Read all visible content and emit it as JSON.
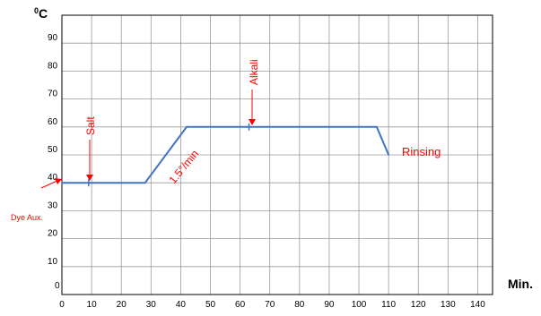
{
  "chart_data": {
    "type": "line",
    "title": "",
    "xlabel": "Min.",
    "ylabel": "0C",
    "ylabel_sup": "0",
    "ylabel_main": "C",
    "xlim": [
      0,
      145
    ],
    "ylim": [
      0,
      100
    ],
    "x_ticks": [
      0,
      10,
      20,
      30,
      40,
      50,
      60,
      70,
      80,
      90,
      100,
      110,
      120,
      130,
      140
    ],
    "y_ticks": [
      10,
      20,
      30,
      40,
      50,
      60,
      70,
      80,
      90
    ],
    "y_tick_zero_label": "0",
    "grid": true,
    "series": [
      {
        "color": "#4472c4",
        "x": [
          0,
          28,
          42,
          106,
          110
        ],
        "y": [
          40,
          40,
          60,
          60,
          50
        ]
      }
    ],
    "annotations": [
      {
        "text": "Dye Aux.",
        "color": "#ff0000"
      },
      {
        "text": "Salt",
        "color": "#ff0000",
        "x": 9,
        "y": 40
      },
      {
        "text": "1.5°/min",
        "color": "#ff0000"
      },
      {
        "text": "Alkali",
        "color": "#ff0000",
        "x": 63,
        "y": 60
      },
      {
        "text": "Rinsing",
        "color": "#ff0000"
      }
    ]
  }
}
